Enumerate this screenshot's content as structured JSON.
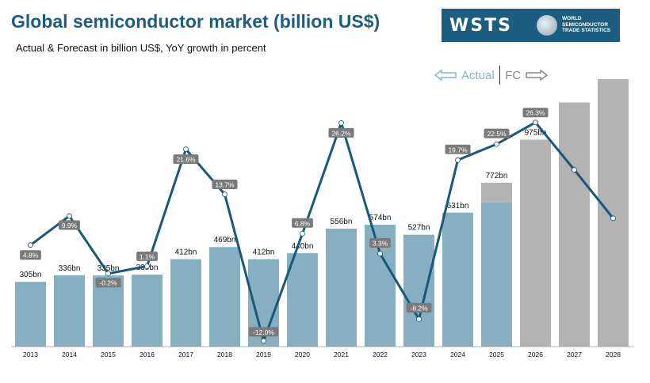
{
  "header": {
    "title": "Global semiconductor market (billion US$)",
    "subtitle": "Actual & Forecast in billion US$, YoY growth in percent"
  },
  "logo": {
    "wordmark": "WSTS",
    "lines": [
      "WORLD",
      "SEMICONDUCTOR",
      "TRADE STATISTICS"
    ]
  },
  "legend_marker": {
    "actual": "Actual",
    "forecast": "FC"
  },
  "chart_data": {
    "type": "bar",
    "categories": [
      "2013",
      "2014",
      "2015",
      "2016",
      "2017",
      "2018",
      "2019",
      "2020",
      "2021",
      "2022",
      "2023",
      "2024",
      "2025",
      "2026",
      "2027",
      "2028"
    ],
    "values": [
      305,
      336,
      335,
      339,
      412,
      469,
      412,
      440,
      556,
      574,
      527,
      631,
      772,
      975,
      1150,
      1260
    ],
    "value_labels": [
      "305bn",
      "336bn",
      "335bn",
      "339bn",
      "412bn",
      "469bn",
      "412bn",
      "440bn",
      "556bn",
      "574bn",
      "527bn",
      "631bn",
      "772bn",
      "975bn",
      "",
      ""
    ],
    "actual_share_2025": 679,
    "growth": [
      4.8,
      9.9,
      -0.2,
      1.1,
      21.6,
      13.7,
      -12.0,
      6.8,
      26.2,
      3.3,
      -8.2,
      19.7,
      22.5,
      26.3,
      18,
      9.5
    ],
    "growth_labels": [
      "4.8%",
      "9.9%",
      "-0.2%",
      "1.1%",
      "21.6%",
      "13.7%",
      "-12.0%",
      "6.8%",
      "26.2%",
      "3.3%",
      "-8.2%",
      "19.7%",
      "22.5%",
      "26.3%",
      "",
      ""
    ],
    "ylim": [
      0,
      1290
    ],
    "growth_lim": [
      -13,
      35
    ],
    "colors": {
      "actual": "#86afc1",
      "forecast": "#b3b3b3",
      "line": "#185878"
    }
  }
}
